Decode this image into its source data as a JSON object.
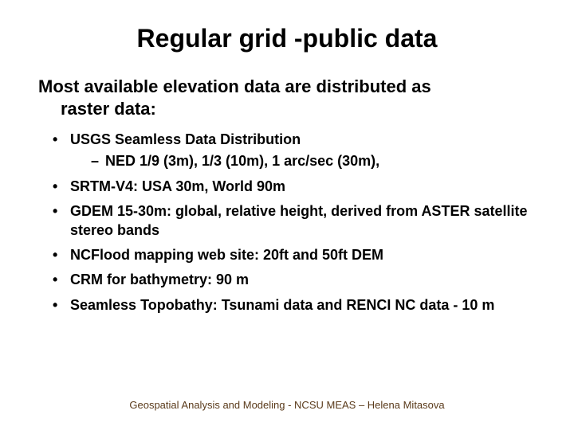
{
  "title": "Regular grid -public data",
  "subtitle_line1": "Most available elevation data are distributed as",
  "subtitle_line2": "raster data:",
  "bullets": [
    {
      "text": "USGS Seamless Data Distribution",
      "sub": "NED 1/9 (3m), 1/3 (10m), 1 arc/sec (30m),"
    },
    {
      "text": "SRTM-V4: USA 30m, World 90m"
    },
    {
      "text": "GDEM 15-30m: global, relative height, derived from ASTER satellite stereo bands"
    },
    {
      "text": "NCFlood mapping web site: 20ft and 50ft DEM"
    },
    {
      "text": "CRM for bathymetry: 90 m"
    },
    {
      "text": "Seamless Topobathy:  Tsunami data and RENCI NC data - 10 m"
    }
  ],
  "footer": "Geospatial Analysis and Modeling - NCSU MEAS – Helena Mitasova",
  "colors": {
    "text": "#000000",
    "footer": "#5a3a1a",
    "background": "#ffffff"
  },
  "fonts": {
    "title_size": 32,
    "subtitle_size": 22,
    "bullet_size": 18,
    "footer_size": 13,
    "weight": "bold"
  }
}
